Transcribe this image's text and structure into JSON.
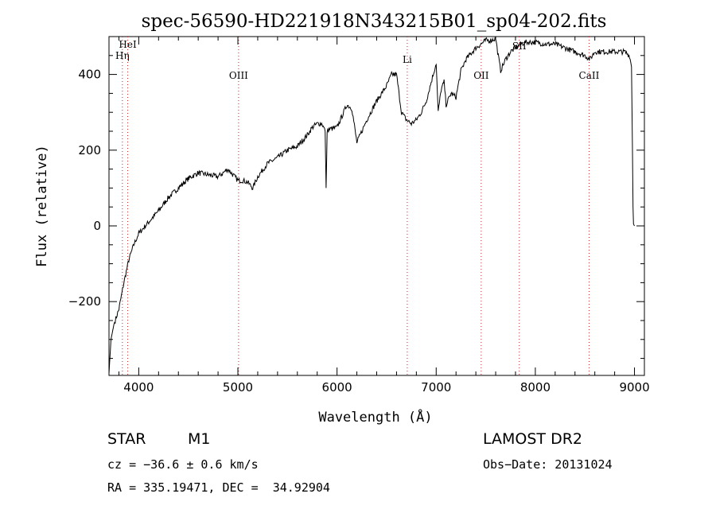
{
  "chart_data": {
    "type": "line",
    "title": "spec-56590-HD221918N343215B01_sp04-202.fits",
    "xlabel": "Wavelength (Å)",
    "ylabel": "Flux (relative)",
    "xlim": [
      3700,
      9100
    ],
    "ylim": [
      -395,
      500
    ],
    "x_ticks": [
      4000,
      5000,
      6000,
      7000,
      8000,
      9000
    ],
    "y_ticks": [
      -200,
      0,
      200,
      400
    ],
    "x_tick_labels": [
      "4000",
      "5000",
      "6000",
      "7000",
      "8000",
      "9000"
    ],
    "y_tick_labels": [
      "−200",
      "0",
      "200",
      "400"
    ],
    "grid": false,
    "series": [
      {
        "color": "#000000",
        "x": [
          3700,
          3720,
          3750,
          3800,
          3850,
          3900,
          3950,
          4000,
          4100,
          4200,
          4300,
          4400,
          4500,
          4600,
          4700,
          4800,
          4850,
          4900,
          5000,
          5050,
          5100,
          5150,
          5200,
          5300,
          5400,
          5500,
          5600,
          5700,
          5750,
          5800,
          5850,
          5880,
          5890,
          5900,
          5920,
          6000,
          6050,
          6100,
          6150,
          6200,
          6250,
          6300,
          6400,
          6500,
          6550,
          6600,
          6650,
          6700,
          6750,
          6800,
          6850,
          6900,
          6950,
          7000,
          7020,
          7050,
          7080,
          7100,
          7150,
          7200,
          7250,
          7300,
          7400,
          7500,
          7550,
          7600,
          7620,
          7650,
          7700,
          7750,
          7800,
          7850,
          7900,
          8000,
          8100,
          8200,
          8300,
          8400,
          8500,
          8550,
          8600,
          8700,
          8800,
          8900,
          8950,
          8970,
          8980,
          8985,
          8990,
          9000
        ],
        "y": [
          -390,
          -300,
          -260,
          -220,
          -150,
          -90,
          -50,
          -20,
          10,
          40,
          75,
          100,
          125,
          140,
          135,
          130,
          140,
          150,
          120,
          120,
          115,
          100,
          130,
          165,
          180,
          200,
          210,
          240,
          260,
          270,
          270,
          250,
          100,
          250,
          255,
          260,
          290,
          320,
          310,
          220,
          250,
          280,
          330,
          370,
          400,
          400,
          300,
          280,
          270,
          280,
          300,
          330,
          380,
          430,
          300,
          360,
          380,
          320,
          350,
          340,
          410,
          440,
          470,
          490,
          490,
          495,
          460,
          410,
          440,
          460,
          470,
          480,
          485,
          485,
          480,
          480,
          470,
          460,
          450,
          440,
          460,
          460,
          460,
          460,
          450,
          420,
          200,
          50,
          5,
          0
        ]
      }
    ],
    "line_markers": [
      {
        "label": "Hη",
        "x": 3835
      },
      {
        "label": "HeI",
        "x": 3889
      },
      {
        "label": "OIII",
        "x": 5007
      },
      {
        "label": "Li",
        "x": 6708
      },
      {
        "label": "OII",
        "x": 7454
      },
      {
        "label": "SII",
        "x": 7838
      },
      {
        "label": "CaII",
        "x": 8542
      }
    ]
  },
  "info": {
    "object_class": "STAR",
    "subclass": "M1",
    "survey": "LAMOST DR2",
    "cz": "cz = −36.6 ± 0.6 km/s",
    "obs_date": "Obs−Date: 20131024",
    "coords": "RA = 335.19471, DEC =  34.92904"
  }
}
